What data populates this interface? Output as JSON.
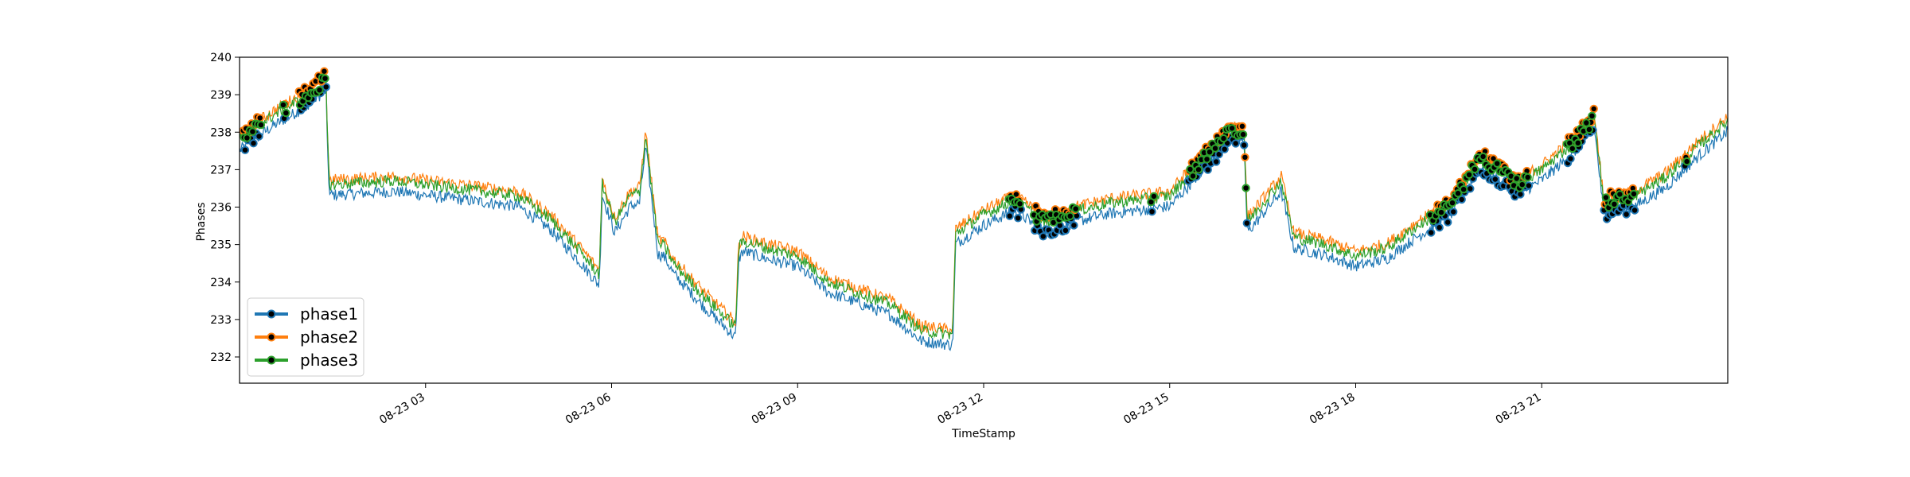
{
  "chart_data": {
    "type": "line",
    "xlabel": "TimeStamp",
    "ylabel": "Phases",
    "ylim": [
      231.3,
      240.0
    ],
    "xlim_hours": [
      0.0,
      24.0
    ],
    "yticks": [
      232,
      233,
      234,
      235,
      236,
      237,
      238,
      239,
      240
    ],
    "xticks": [
      {
        "hour": 3,
        "label": "08-23 03"
      },
      {
        "hour": 6,
        "label": "08-23 06"
      },
      {
        "hour": 9,
        "label": "08-23 09"
      },
      {
        "hour": 12,
        "label": "08-23 12"
      },
      {
        "hour": 15,
        "label": "08-23 15"
      },
      {
        "hour": 18,
        "label": "08-23 18"
      },
      {
        "hour": 21,
        "label": "08-23 21"
      }
    ],
    "grid": false,
    "legend_position": "lower-left",
    "series": [
      {
        "name": "phase1",
        "color": "#1f77b4"
      },
      {
        "name": "phase2",
        "color": "#ff7f0e"
      },
      {
        "name": "phase3",
        "color": "#2ca02c"
      }
    ],
    "reference_curve": {
      "x_hours": [
        0.0,
        0.5,
        1.0,
        1.4,
        1.38,
        1.45,
        2.5,
        3.5,
        4.5,
        5.0,
        5.5,
        5.8,
        5.85,
        6.05,
        6.3,
        6.45,
        6.55,
        6.75,
        6.82,
        6.87,
        7.0,
        7.5,
        8.0,
        8.05,
        8.12,
        8.5,
        9.0,
        9.5,
        10.0,
        10.5,
        11.0,
        11.5,
        11.55,
        12.0,
        12.5,
        13.0,
        13.5,
        14.0,
        14.5,
        15.0,
        15.5,
        16.0,
        16.2,
        16.25,
        16.5,
        16.8,
        17.0,
        17.5,
        18.0,
        18.5,
        19.0,
        19.5,
        20.0,
        20.3,
        20.6,
        21.0,
        21.5,
        21.85,
        22.0,
        22.5,
        23.0,
        23.5,
        24.0
      ],
      "y": [
        237.8,
        238.4,
        238.9,
        239.4,
        239.4,
        236.6,
        236.7,
        236.5,
        236.3,
        235.7,
        234.8,
        234.2,
        236.6,
        235.6,
        236.3,
        236.4,
        237.9,
        235.0,
        235.0,
        234.9,
        234.5,
        233.6,
        232.8,
        234.9,
        235.1,
        234.9,
        234.7,
        234.0,
        233.7,
        233.4,
        232.7,
        232.6,
        235.3,
        235.8,
        236.2,
        235.6,
        235.9,
        236.1,
        236.2,
        236.3,
        237.2,
        238.1,
        238.0,
        235.6,
        236.1,
        236.7,
        235.2,
        235.0,
        234.7,
        234.9,
        235.5,
        236.0,
        237.3,
        237.0,
        236.6,
        237.0,
        237.7,
        238.4,
        236.1,
        236.3,
        236.8,
        237.6,
        238.3
      ]
    },
    "series_offsets": [
      -0.28,
      0.12,
      0.0
    ],
    "anomaly_hour_ranges": [
      [
        0.05,
        0.35
      ],
      [
        0.7,
        0.75
      ],
      [
        0.95,
        1.4
      ],
      [
        12.4,
        12.6
      ],
      [
        12.8,
        13.5
      ],
      [
        14.7,
        14.75
      ],
      [
        15.3,
        16.25
      ],
      [
        19.2,
        20.8
      ],
      [
        21.4,
        21.85
      ],
      [
        22.0,
        22.5
      ],
      [
        23.3,
        23.35
      ]
    ]
  }
}
